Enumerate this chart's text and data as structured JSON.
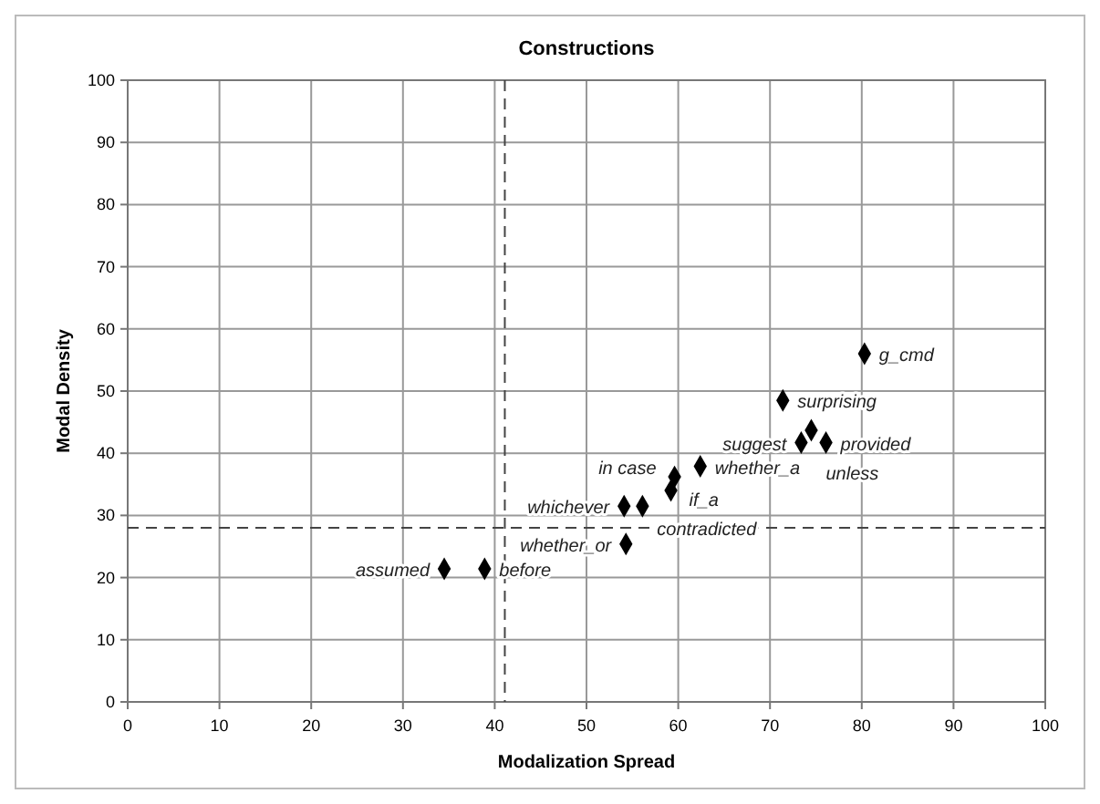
{
  "chart_data": {
    "type": "scatter",
    "title": "Constructions",
    "xlabel": "Modalization Spread",
    "ylabel": "Modal Density",
    "xlim": [
      0,
      100
    ],
    "ylim": [
      0,
      100
    ],
    "xticks": [
      0,
      10,
      20,
      30,
      40,
      50,
      60,
      70,
      80,
      90,
      100
    ],
    "yticks": [
      0,
      10,
      20,
      30,
      40,
      50,
      60,
      70,
      80,
      90,
      100
    ],
    "grid": true,
    "marker": "diamond",
    "series": [
      {
        "color": "#000000",
        "x": [
          80.3,
          71.4,
          74.5,
          76.1,
          73.4,
          62.4,
          59.6,
          59.2,
          54.1,
          56.1,
          54.3,
          34.5,
          38.9
        ],
        "values": [
          56,
          48.5,
          43.7,
          41.7,
          41.7,
          37.9,
          36.2,
          34,
          31.5,
          31.5,
          25.4,
          21.4,
          21.4
        ]
      }
    ],
    "ref_lines": [
      {
        "axis": "x",
        "value": 41.1,
        "line_style": "dashed",
        "color": "#444444"
      },
      {
        "axis": "y",
        "value": 28,
        "line_style": "dashed",
        "color": "#444444"
      }
    ],
    "annotations": [
      {
        "text": "g_cmd",
        "x": 80.3,
        "y": 56
      },
      {
        "text": "surprising",
        "x": 71.4,
        "y": 48.5
      },
      {
        "text": "unless",
        "x": 74.5,
        "y": 43.7
      },
      {
        "text": "provided",
        "x": 76.1,
        "y": 41.7
      },
      {
        "text": "suggest",
        "x": 73.4,
        "y": 41.7
      },
      {
        "text": "whether_a",
        "x": 62.4,
        "y": 37.9
      },
      {
        "text": "if_a",
        "x": 59.6,
        "y": 36.2
      },
      {
        "text": "in case",
        "x": 59.2,
        "y": 34
      },
      {
        "text": "whichever",
        "x": 54.1,
        "y": 31.5
      },
      {
        "text": "contradicted",
        "x": 56.1,
        "y": 31.5
      },
      {
        "text": "whether_or",
        "x": 54.3,
        "y": 25.4
      },
      {
        "text": "assumed",
        "x": 34.5,
        "y": 21.4
      },
      {
        "text": "before",
        "x": 38.9,
        "y": 21.4
      }
    ]
  }
}
